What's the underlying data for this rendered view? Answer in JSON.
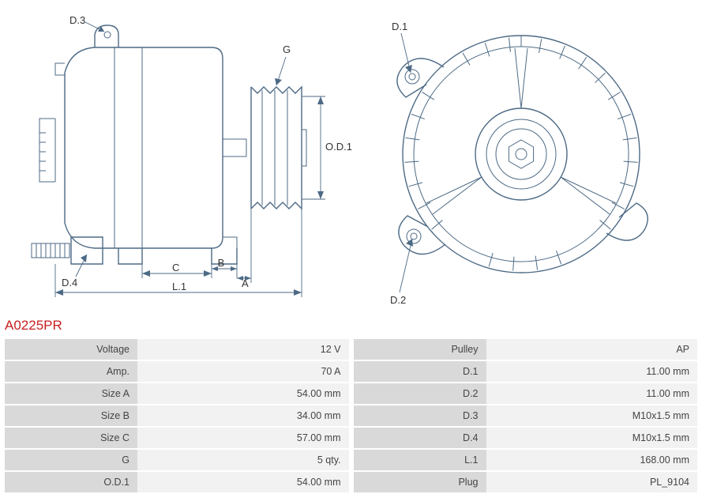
{
  "part_number": "A0225PR",
  "diagram": {
    "type": "engineering-drawing",
    "callouts_side": [
      "D.3",
      "G",
      "O.D.1",
      "D.4",
      "C",
      "B",
      "A",
      "L.1"
    ],
    "callouts_front": [
      "D.1",
      "D.2"
    ],
    "stroke_color": "#4d6a85",
    "label_color": "#333333",
    "bg": "#ffffff"
  },
  "left_table": [
    {
      "label": "Voltage",
      "value": "12 V"
    },
    {
      "label": "Amp.",
      "value": "70 A"
    },
    {
      "label": "Size A",
      "value": "54.00 mm"
    },
    {
      "label": "Size B",
      "value": "34.00 mm"
    },
    {
      "label": "Size C",
      "value": "57.00 mm"
    },
    {
      "label": "G",
      "value": "5 qty."
    },
    {
      "label": "O.D.1",
      "value": "54.00 mm"
    }
  ],
  "right_table": [
    {
      "label": "Pulley",
      "value": "AP"
    },
    {
      "label": "D.1",
      "value": "11.00 mm"
    },
    {
      "label": "D.2",
      "value": "11.00 mm"
    },
    {
      "label": "D.3",
      "value": "M10x1.5 mm"
    },
    {
      "label": "D.4",
      "value": "M10x1.5 mm"
    },
    {
      "label": "L.1",
      "value": "168.00 mm"
    },
    {
      "label": "Plug",
      "value": "PL_9104"
    }
  ],
  "style": {
    "part_color": "#c82020",
    "label_bg": "#d9d9d9",
    "value_bg": "#f2f2f2"
  }
}
